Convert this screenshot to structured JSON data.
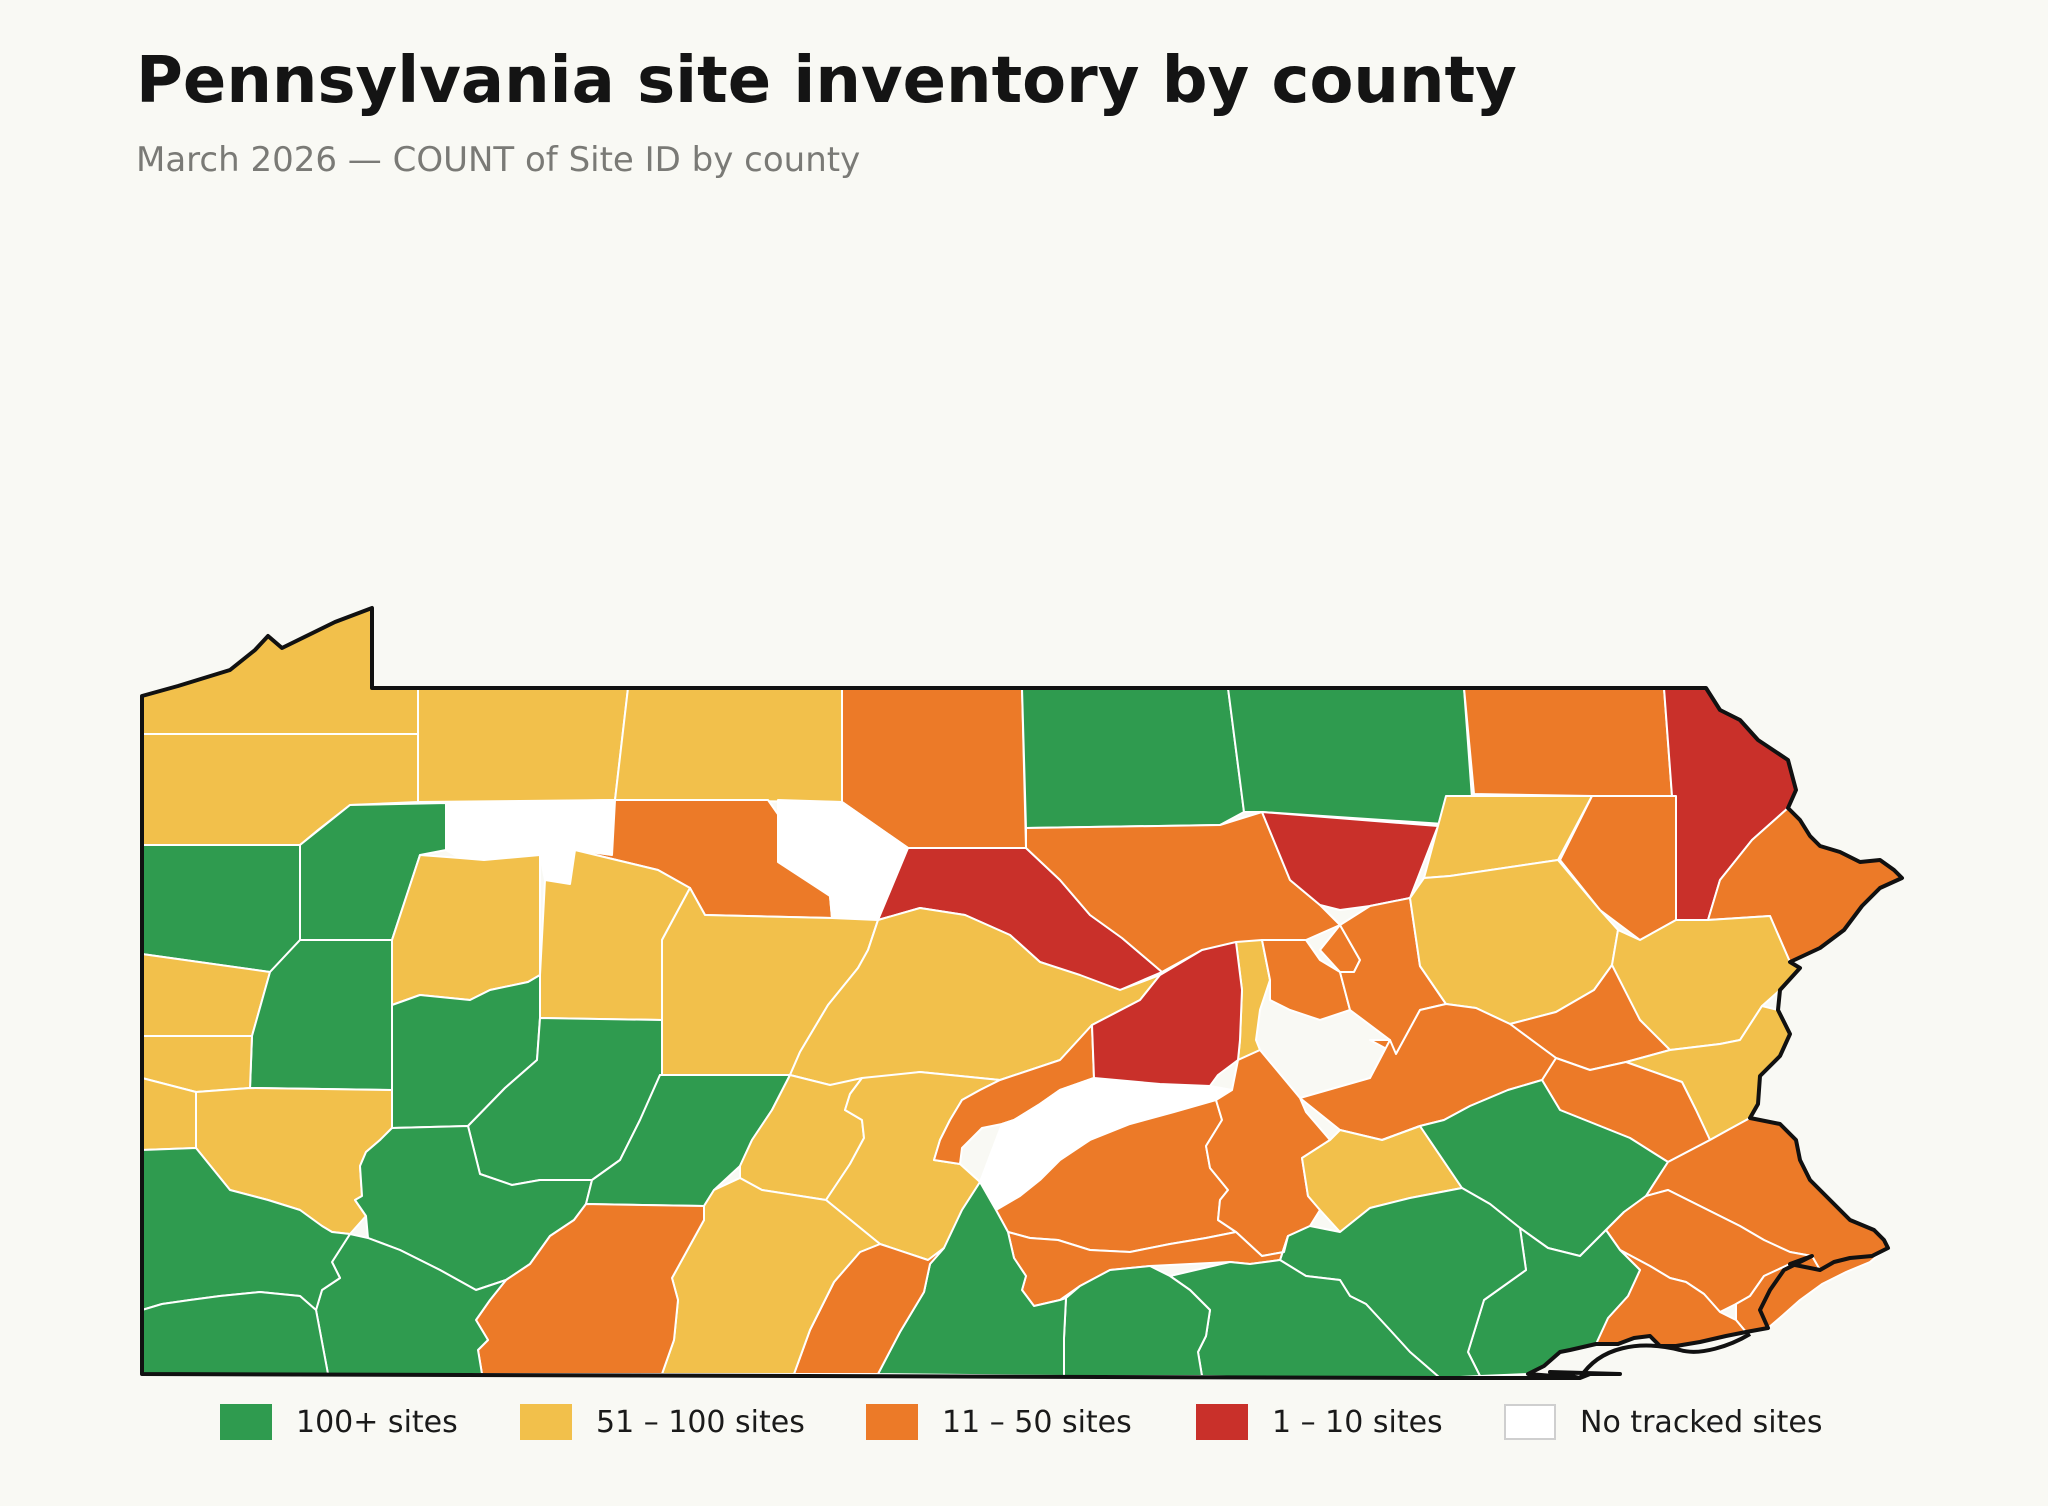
{
  "header": {
    "title": "Pennsylvania site inventory by county",
    "subtitle": "March 2026 — COUNT of Site ID by county"
  },
  "colors": {
    "green": "#2f9b4f",
    "yellow": "#f2c04b",
    "orange": "#ec7a28",
    "red": "#c9302a",
    "none": "#ffffff",
    "outline": "#111111",
    "county_border": "#ffffff"
  },
  "legend": [
    {
      "label": "100+ sites",
      "color": "#2f9b4f"
    },
    {
      "label": "51 – 100 sites",
      "color": "#f2c04b"
    },
    {
      "label": "11 – 50 sites",
      "color": "#ec7a28"
    },
    {
      "label": "1 – 10 sites",
      "color": "#c9302a"
    },
    {
      "label": "No tracked sites",
      "color": "#ffffff"
    }
  ]
}
